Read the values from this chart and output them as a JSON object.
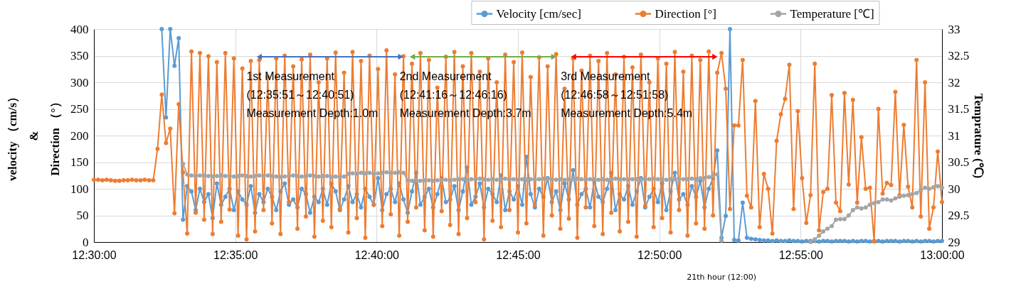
{
  "chart_data": {
    "type": "line",
    "ylabel": "velocity （cm/s）\n&\nDirection （°）",
    "y2label": "Temprature (℃)",
    "x": [
      12.5,
      12.5025,
      12.505,
      12.5075,
      12.51,
      12.5125,
      12.515,
      12.5175,
      12.52,
      12.5225,
      12.525,
      12.5275,
      12.53,
      12.5325,
      12.535,
      12.5375,
      12.54,
      12.5425,
      12.545,
      12.5475,
      12.55,
      12.5525,
      12.555,
      12.5575,
      12.56,
      12.5625,
      12.565,
      12.5675,
      12.57,
      12.5725,
      12.575,
      12.5775,
      12.58,
      12.5825,
      12.585,
      12.5875,
      12.59,
      12.5925,
      12.595,
      12.5975,
      12.6,
      12.6025,
      12.605,
      12.6075,
      12.61,
      12.6125,
      12.615,
      12.6175,
      12.62,
      12.6225,
      12.625,
      12.6275,
      12.63,
      12.6325,
      12.635,
      12.6375,
      12.64,
      12.6425,
      12.645,
      12.6475,
      12.65,
      12.6525,
      12.655,
      12.6575,
      12.66,
      12.6625,
      12.665,
      12.6675,
      12.67,
      12.6725,
      12.675,
      12.6775,
      12.68,
      12.6825,
      12.685,
      12.6875,
      12.69,
      12.6925,
      12.695,
      12.6975,
      12.7,
      12.7025,
      12.705,
      12.7075,
      12.71,
      12.7125,
      12.715,
      12.7175,
      12.72,
      12.7225,
      12.725,
      12.7275,
      12.73,
      12.7325,
      12.735,
      12.7375,
      12.74,
      12.7425,
      12.745,
      12.7475,
      12.75,
      12.7525,
      12.755,
      12.7575,
      12.76,
      12.7625,
      12.765,
      12.7675,
      12.77,
      12.7725,
      12.775,
      12.7775,
      12.78,
      12.7825,
      12.785,
      12.7875,
      12.79,
      12.7925,
      12.795,
      12.7975,
      12.8,
      12.8025,
      12.805,
      12.8075,
      12.81,
      12.8125,
      12.815,
      12.8175,
      12.82,
      12.8225,
      12.825,
      12.8275,
      12.83,
      12.8325,
      12.835,
      12.8375,
      12.84,
      12.8425,
      12.845,
      12.8475,
      12.85,
      12.8525,
      12.855,
      12.8575,
      12.86,
      12.8625,
      12.865,
      12.8675,
      12.87,
      12.8725,
      12.875,
      12.8775,
      12.88,
      12.8825,
      12.885,
      12.8875,
      12.89,
      12.8925,
      12.895,
      12.8975,
      12.9,
      12.9025,
      12.905,
      12.9075,
      12.91,
      12.9125,
      12.915,
      12.9175,
      12.92,
      12.9225,
      12.925,
      12.9275,
      12.93,
      12.9325,
      12.935,
      12.9375,
      12.94,
      12.9425,
      12.945,
      12.9475,
      12.95,
      12.9525,
      12.955,
      12.9575,
      12.96,
      12.9625,
      12.965,
      12.9675,
      12.97,
      12.9725,
      12.975,
      12.9775,
      12.98,
      12.9825,
      12.985,
      12.9875,
      12.99,
      12.9925,
      12.995,
      12.9975,
      13.0
    ],
    "series": [
      {
        "name": "Velocity [cm/sec]",
        "color": "#5b9bd5",
        "values": [
          null,
          null,
          null,
          null,
          null,
          null,
          null,
          null,
          null,
          null,
          null,
          null,
          null,
          null,
          null,
          null,
          400,
          234,
          400,
          331,
          383,
          42,
          105,
          95,
          60,
          100,
          75,
          90,
          45,
          110,
          70,
          85,
          100,
          60,
          95,
          80,
          70,
          105,
          55,
          90,
          75,
          100,
          85,
          60,
          95,
          110,
          70,
          80,
          65,
          100,
          90,
          55,
          85,
          75,
          100,
          70,
          110,
          95,
          60,
          80,
          105,
          75,
          90,
          65,
          100,
          85,
          70,
          120,
          60,
          90,
          100,
          75,
          110,
          80,
          55,
          95,
          130,
          70,
          85,
          100,
          65,
          90,
          120,
          75,
          80,
          105,
          60,
          95,
          140,
          70,
          85,
          110,
          65,
          100,
          90,
          75,
          125,
          60,
          95,
          80,
          105,
          70,
          160,
          90,
          65,
          100,
          85,
          120,
          75,
          95,
          60,
          110,
          80,
          135,
          70,
          90,
          100,
          65,
          115,
          85,
          75,
          100,
          130,
          60,
          90,
          80,
          105,
          70,
          95,
          120,
          65,
          85,
          100,
          75,
          110,
          60,
          95,
          130,
          80,
          90,
          70,
          105,
          85,
          115,
          65,
          100,
          120,
          172,
          8,
          49,
          400,
          4,
          3,
          74,
          8,
          6,
          5,
          4,
          3,
          3,
          2,
          3,
          2,
          2,
          3,
          2,
          2,
          1,
          2,
          2,
          2,
          1,
          2,
          2,
          1,
          2,
          2,
          2,
          1,
          2,
          1,
          2,
          2,
          1,
          2,
          2,
          1,
          2,
          2,
          2,
          1,
          2,
          2,
          1,
          2,
          1,
          2,
          2,
          1,
          2,
          2
        ]
      },
      {
        "name": "Direction [°]",
        "color": "#ed7d31",
        "values": [
          117,
          117,
          116,
          117,
          116,
          115,
          115,
          116,
          116,
          117,
          116,
          116,
          117,
          116,
          116,
          175,
          277,
          186,
          213,
          54,
          259,
          131,
          16,
          358,
          55,
          355,
          42,
          349,
          15,
          338,
          38,
          355,
          61,
          345,
          12,
          326,
          5,
          340,
          20,
          342,
          60,
          310,
          35,
          345,
          15,
          350,
          75,
          330,
          25,
          343,
          48,
          352,
          10,
          300,
          40,
          345,
          28,
          356,
          62,
          318,
          18,
          357,
          45,
          340,
          8,
          350,
          70,
          325,
          30,
          360,
          52,
          315,
          12,
          349,
          38,
          335,
          65,
          355,
          22,
          342,
          10,
          290,
          58,
          348,
          32,
          357,
          15,
          330,
          45,
          355,
          75,
          320,
          5,
          345,
          40,
          300,
          28,
          352,
          60,
          338,
          18,
          356,
          35,
          310,
          70,
          347,
          12,
          330,
          50,
          353,
          25,
          288,
          44,
          345,
          8,
          322,
          65,
          350,
          30,
          340,
          15,
          355,
          55,
          315,
          20,
          348,
          38,
          328,
          10,
          352,
          68,
          300,
          28,
          345,
          45,
          335,
          18,
          357,
          60,
          320,
          12,
          350,
          35,
          342,
          25,
          358,
          50,
          318,
          355,
          288,
          62,
          219,
          219,
          342,
          87,
          65,
          265,
          28,
          128,
          100,
          16,
          190,
          240,
          269,
          333,
          62,
          246,
          120,
          36,
          88,
          335,
          22,
          94,
          100,
          276,
          74,
          58,
          280,
          108,
          267,
          74,
          197,
          100,
          102,
          1,
          250,
          91,
          111,
          107,
          282,
          88,
          220,
          104,
          65,
          342,
          48,
          300,
          25,
          65,
          170,
          75
        ]
      },
      {
        "type": "line",
        "x": [
          12.5975,
          12.680833
        ],
        "values": [
          348,
          348
        ],
        "color": "#4472c4",
        "marker": "triangle"
      },
      {
        "type": "line",
        "x": [
          12.687778,
          12.771111
        ],
        "values": [
          348,
          348
        ],
        "color": "#70ad47",
        "marker": "triangle"
      },
      {
        "type": "line",
        "x": [
          12.782778,
          12.866111
        ],
        "values": [
          348,
          348
        ],
        "color": "#ff0000",
        "marker": "triangle"
      },
      {
        "name": "Temperature [℃]",
        "color": "#a5a5a5",
        "axis": "y2",
        "values": [
          null,
          null,
          null,
          null,
          null,
          null,
          null,
          null,
          null,
          null,
          null,
          null,
          null,
          null,
          null,
          null,
          null,
          null,
          null,
          null,
          null,
          30.47,
          30.27,
          30.25,
          30.24,
          30.25,
          30.25,
          30.24,
          30.23,
          30.24,
          30.25,
          30.24,
          30.24,
          30.23,
          30.24,
          30.25,
          30.24,
          30.23,
          30.24,
          30.25,
          30.24,
          30.25,
          30.24,
          30.23,
          30.22,
          30.23,
          30.24,
          30.25,
          30.24,
          30.23,
          30.24,
          30.25,
          30.24,
          30.23,
          30.24,
          30.24,
          30.22,
          30.23,
          30.22,
          30.23,
          30.28,
          30.29,
          30.28,
          30.3,
          30.29,
          30.3,
          30.28,
          30.29,
          30.3,
          30.31,
          30.3,
          30.3,
          30.31,
          30.3,
          30.16,
          30.15,
          30.16,
          30.15,
          30.16,
          30.16,
          30.15,
          30.16,
          30.16,
          30.17,
          30.16,
          30.17,
          30.18,
          30.18,
          30.17,
          30.18,
          30.18,
          30.19,
          30.18,
          30.17,
          30.18,
          30.17,
          30.18,
          30.19,
          30.18,
          30.18,
          30.17,
          30.18,
          30.17,
          30.18,
          30.17,
          30.18,
          30.19,
          30.18,
          30.18,
          30.17,
          30.18,
          30.17,
          30.18,
          30.18,
          30.19,
          30.18,
          30.17,
          30.18,
          30.18,
          30.17,
          30.18,
          30.17,
          30.18,
          30.19,
          30.18,
          30.18,
          30.17,
          30.18,
          30.18,
          30.17,
          30.18,
          30.18,
          30.19,
          30.18,
          30.18,
          30.17,
          30.18,
          30.18,
          30.19,
          30.18,
          30.18,
          30.19,
          30.18,
          30.2,
          30.2,
          30.22,
          30.24,
          30.27,
          29.03,
          null,
          null,
          null,
          null,
          null,
          null,
          null,
          null,
          null,
          null,
          null,
          null,
          null,
          null,
          null,
          null,
          null,
          null,
          null,
          null,
          29.0,
          29.05,
          29.12,
          29.2,
          29.25,
          29.3,
          29.42,
          29.43,
          29.43,
          29.5,
          29.6,
          29.65,
          29.63,
          29.65,
          29.7,
          29.73,
          29.75,
          29.8,
          29.8,
          29.78,
          29.82,
          29.85,
          29.87,
          29.88,
          29.9,
          29.92,
          29.97,
          30.02,
          30.0,
          30.03,
          30.05,
          30.02
        ]
      }
    ],
    "xlim": [
      12.5,
      13.0
    ],
    "xticks": [
      {
        "value": 12.5,
        "label": "12:30:00"
      },
      {
        "value": 12.583333,
        "label": "12:35:00"
      },
      {
        "value": 12.666667,
        "label": "12:40:00"
      },
      {
        "value": 12.75,
        "label": "12:45:00"
      },
      {
        "value": 12.833333,
        "label": "12:50:00"
      },
      {
        "value": 12.916667,
        "label": "12:55:00"
      },
      {
        "value": 13.0,
        "label": "13:00:00"
      }
    ],
    "ylim": [
      0,
      400
    ],
    "yticks": [
      0,
      50,
      100,
      150,
      200,
      250,
      300,
      350,
      400
    ],
    "y2lim": [
      29,
      33
    ],
    "y2ticks": [
      29,
      29.5,
      30,
      30.5,
      31,
      31.5,
      32,
      32.5,
      33
    ],
    "annotations": [
      {
        "text": "1st Measurement\n(12:35:51～12:40:51)\nMeasurement Depth:1.0m",
        "x": 12.5975,
        "y": 348
      },
      {
        "text": "2nd Measurement\n(12:41:16～12:46:16)\nMeasurement Depth:3.7m",
        "x": 12.687778,
        "y": 348
      },
      {
        "text": "3rd Measurement\n(12:46:58～12:51:58)\nMeasurement Depth:5.4m",
        "x": 12.782778,
        "y": 348
      },
      "21th hour (12:00)"
    ],
    "grid": true,
    "legend": "top",
    "marker": "circle",
    "line_style": "solid"
  }
}
